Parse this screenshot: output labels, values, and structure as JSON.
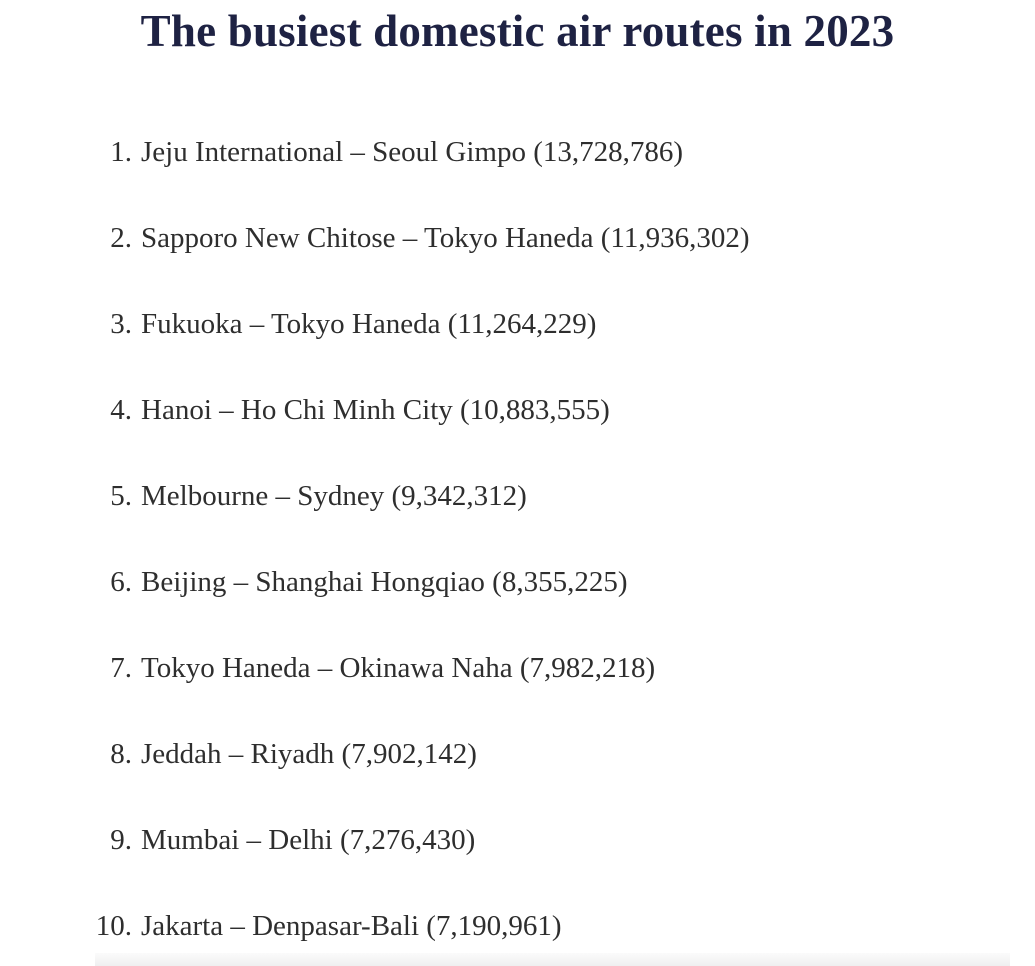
{
  "page": {
    "title": "The busiest domestic air routes in 2023",
    "title_color": "#1e2243",
    "text_color": "#2e2e2e",
    "background_color": "#ffffff"
  },
  "list": {
    "items": [
      {
        "number": "1.",
        "text": "Jeju International – Seoul Gimpo (13,728,786)"
      },
      {
        "number": "2.",
        "text": "Sapporo New Chitose – Tokyo Haneda (11,936,302)"
      },
      {
        "number": "3.",
        "text": "Fukuoka – Tokyo Haneda (11,264,229)"
      },
      {
        "number": "4.",
        "text": "Hanoi – Ho Chi Minh City (10,883,555)"
      },
      {
        "number": "5.",
        "text": "Melbourne – Sydney (9,342,312)"
      },
      {
        "number": "6.",
        "text": "Beijing – Shanghai Hongqiao (8,355,225)"
      },
      {
        "number": "7.",
        "text": "Tokyo Haneda – Okinawa Naha (7,982,218)"
      },
      {
        "number": "8.",
        "text": "Jeddah – Riyadh (7,902,142)"
      },
      {
        "number": "9.",
        "text": "Mumbai – Delhi (7,276,430)"
      },
      {
        "number": "10.",
        "text": "Jakarta – Denpasar-Bali (7,190,961)"
      }
    ]
  }
}
